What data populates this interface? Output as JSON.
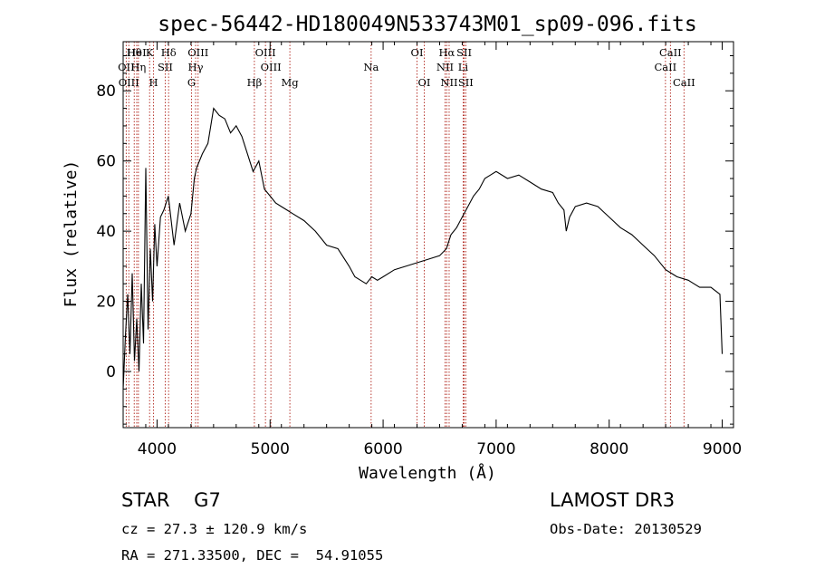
{
  "chart_data": {
    "type": "line",
    "title": "spec-56442-HD180049N533743M01_sp09-096.fits",
    "xlabel": "Wavelength (Å)",
    "ylabel": "Flux (relative)",
    "xlim": [
      3700,
      9100
    ],
    "ylim": [
      -16,
      94
    ],
    "x_ticks": [
      4000,
      5000,
      6000,
      7000,
      8000,
      9000
    ],
    "y_ticks": [
      0,
      20,
      40,
      60,
      80
    ],
    "series": [
      {
        "name": "flux",
        "x": [
          3700,
          3720,
          3740,
          3760,
          3780,
          3800,
          3820,
          3840,
          3860,
          3880,
          3900,
          3920,
          3940,
          3960,
          3980,
          4000,
          4030,
          4060,
          4100,
          4150,
          4200,
          4250,
          4300,
          4330,
          4350,
          4400,
          4450,
          4500,
          4550,
          4600,
          4650,
          4700,
          4750,
          4800,
          4850,
          4900,
          4950,
          5000,
          5050,
          5100,
          5150,
          5200,
          5300,
          5400,
          5500,
          5600,
          5700,
          5750,
          5800,
          5850,
          5900,
          5950,
          6000,
          6100,
          6200,
          6300,
          6400,
          6500,
          6560,
          6600,
          6650,
          6700,
          6750,
          6800,
          6850,
          6900,
          6950,
          7000,
          7100,
          7200,
          7300,
          7400,
          7500,
          7550,
          7600,
          7620,
          7650,
          7700,
          7800,
          7900,
          8000,
          8100,
          8200,
          8300,
          8400,
          8500,
          8550,
          8600,
          8700,
          8800,
          8900,
          8980,
          9000
        ],
        "y": [
          -5,
          10,
          22,
          5,
          28,
          3,
          15,
          0,
          25,
          8,
          58,
          12,
          35,
          20,
          42,
          30,
          44,
          46,
          50,
          36,
          48,
          40,
          45,
          55,
          58,
          62,
          65,
          75,
          73,
          72,
          68,
          70,
          67,
          62,
          57,
          60,
          52,
          50,
          48,
          47,
          46,
          45,
          43,
          40,
          36,
          35,
          30,
          27,
          26,
          25,
          27,
          26,
          27,
          29,
          30,
          31,
          32,
          33,
          35,
          39,
          41,
          44,
          47,
          50,
          52,
          55,
          56,
          57,
          55,
          56,
          54,
          52,
          51,
          48,
          46,
          40,
          44,
          47,
          48,
          47,
          44,
          41,
          39,
          36,
          33,
          29,
          28,
          27,
          26,
          24,
          24,
          22,
          5
        ]
      }
    ],
    "emission_lines": [
      {
        "label": "Hθ",
        "wavelength": 3798
      },
      {
        "label": "OII",
        "wavelength": 3727
      },
      {
        "label": "OIII",
        "wavelength": 3750
      },
      {
        "label": "HeI",
        "wavelength": 3820
      },
      {
        "label": "Hη",
        "wavelength": 3835
      },
      {
        "label": "K",
        "wavelength": 3934
      },
      {
        "label": "SII",
        "wavelength": 4072
      },
      {
        "label": "H",
        "wavelength": 3969
      },
      {
        "label": "Hδ",
        "wavelength": 4102
      },
      {
        "label": "OIII",
        "wavelength": 4363
      },
      {
        "label": "Hγ",
        "wavelength": 4341
      },
      {
        "label": "G",
        "wavelength": 4305
      },
      {
        "label": "Hβ",
        "wavelength": 4861
      },
      {
        "label": "OIII",
        "wavelength": 4959
      },
      {
        "label": "OIII",
        "wavelength": 5007
      },
      {
        "label": "Mg",
        "wavelength": 5175
      },
      {
        "label": "Na",
        "wavelength": 5894
      },
      {
        "label": "OI",
        "wavelength": 6300
      },
      {
        "label": "OI",
        "wavelength": 6364
      },
      {
        "label": "Hα",
        "wavelength": 6563
      },
      {
        "label": "NII",
        "wavelength": 6548
      },
      {
        "label": "NII",
        "wavelength": 6584
      },
      {
        "label": "SII",
        "wavelength": 6717
      },
      {
        "label": "Li",
        "wavelength": 6708
      },
      {
        "label": "SII",
        "wavelength": 6731
      },
      {
        "label": "CaII",
        "wavelength": 8542
      },
      {
        "label": "CaII",
        "wavelength": 8498
      },
      {
        "label": "CaII",
        "wavelength": 8662
      }
    ],
    "line_color": "#000000",
    "marker_color": "#b0241b"
  },
  "info": {
    "class_line": "STAR    G7",
    "survey": "LAMOST DR3",
    "cz_line": "cz = 27.3 ± 120.9 km/s",
    "obs_date": "Obs-Date: 20130529",
    "coords": "RA = 271.33500, DEC =  54.91055"
  }
}
